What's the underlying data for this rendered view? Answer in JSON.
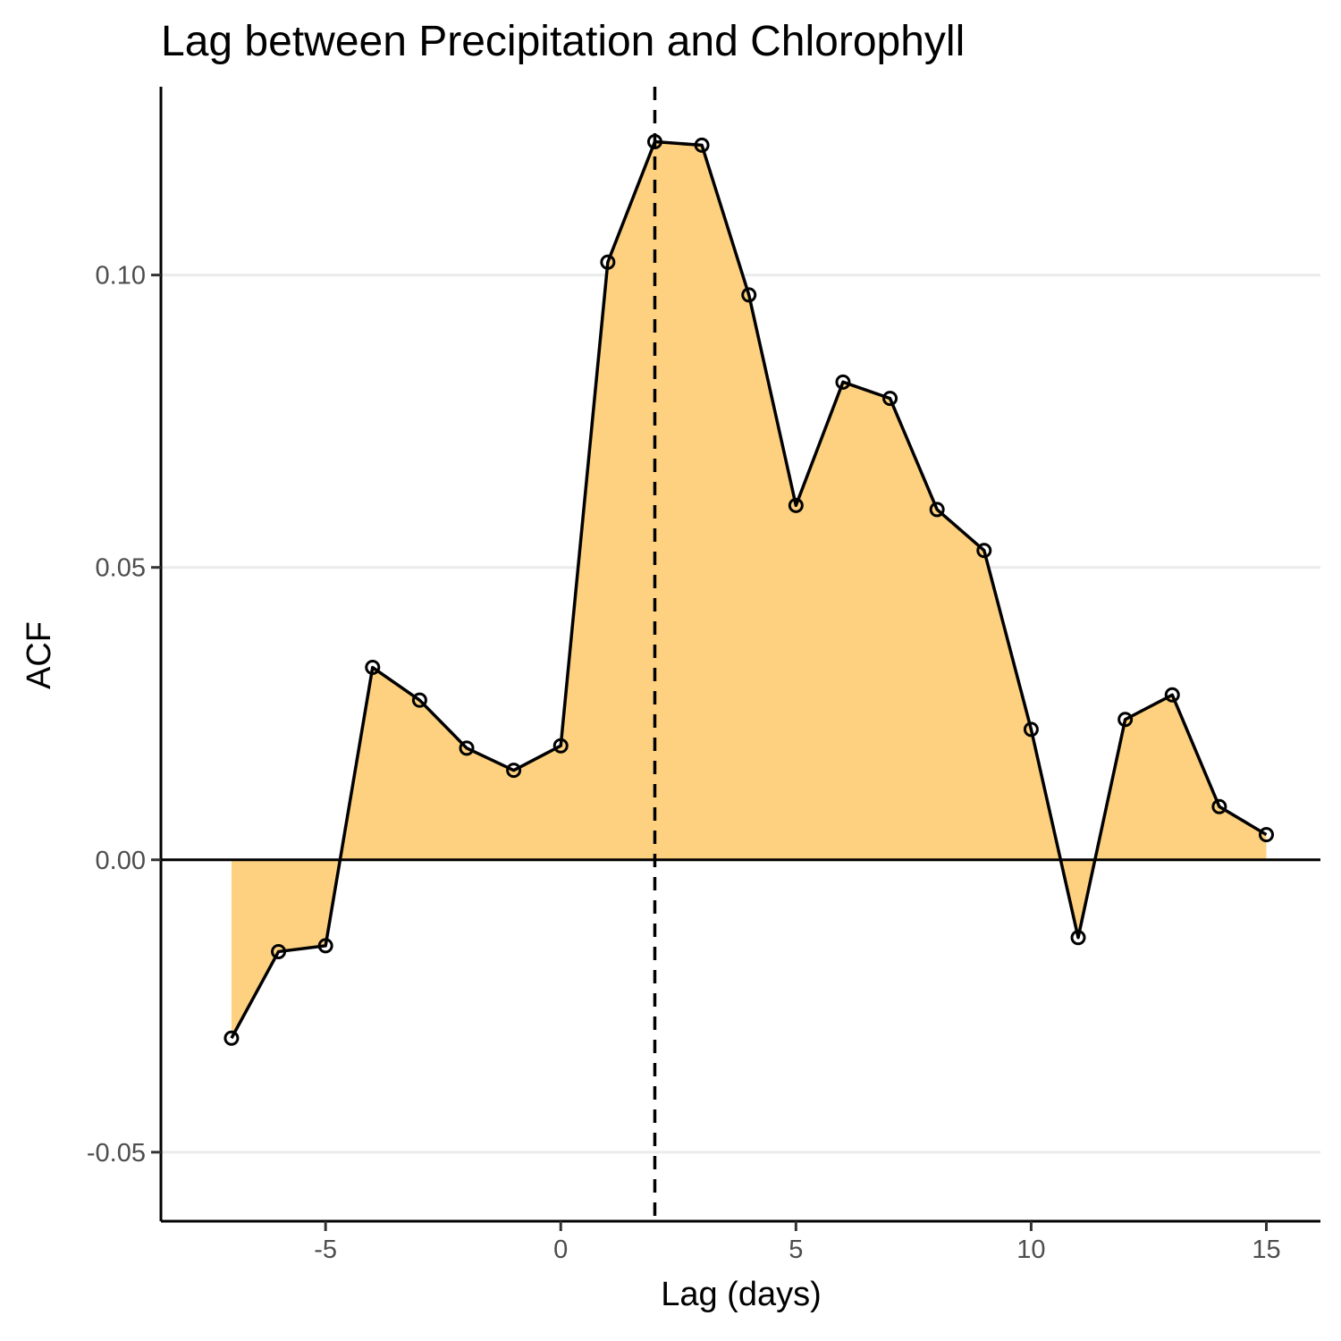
{
  "chart_data": {
    "type": "area",
    "title": "Lag between Precipitation and Chlorophyll",
    "xlabel": "Lag (days)",
    "ylabel": "ACF",
    "x": [
      -7,
      -6,
      -5,
      -4,
      -3,
      -2,
      -1,
      0,
      1,
      2,
      3,
      4,
      5,
      6,
      7,
      8,
      9,
      10,
      11,
      12,
      13,
      14,
      15
    ],
    "y": [
      -0.0305,
      -0.0157,
      -0.0147,
      0.0329,
      0.0273,
      0.0191,
      0.0153,
      0.0195,
      0.1022,
      0.1228,
      0.1222,
      0.0966,
      0.0606,
      0.0817,
      0.0789,
      0.0599,
      0.0529,
      0.0223,
      -0.0133,
      0.024,
      0.0282,
      0.0091,
      0.0043
    ],
    "xlim": [
      -8.5,
      16.15
    ],
    "ylim": [
      -0.0618,
      0.1322
    ],
    "x_ticks": [
      -5,
      0,
      5,
      10,
      15
    ],
    "x_tick_labels": [
      "-5",
      "0",
      "5",
      "10",
      "15"
    ],
    "y_ticks": [
      -0.05,
      0.0,
      0.05,
      0.1
    ],
    "y_tick_labels": [
      "-0.05",
      "0.00",
      "0.05",
      "0.10"
    ],
    "reference_vline": 2,
    "reference_hline": 0,
    "grid": "horizontal-major",
    "legend": "none",
    "colors": {
      "fill": "#fdd17f",
      "line": "#000000",
      "grid": "#ebebeb",
      "vline": "#000000"
    }
  }
}
